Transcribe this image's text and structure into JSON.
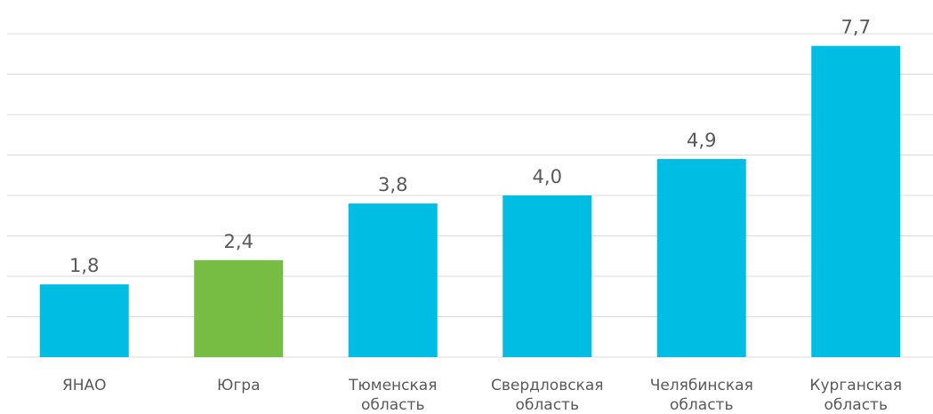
{
  "chart_data": {
    "type": "bar",
    "categories": [
      "ЯНАО",
      "Югра",
      "Тюменская область",
      "Свердловская область",
      "Челябинская область",
      "Курганская область"
    ],
    "values": [
      1.8,
      2.4,
      3.8,
      4.0,
      4.9,
      7.7
    ],
    "value_labels": [
      "1,8",
      "2,4",
      "3,8",
      "4,0",
      "4,9",
      "7,7"
    ],
    "colors": [
      "#00bee3",
      "#77bc43",
      "#00bee3",
      "#00bee3",
      "#00bee3",
      "#00bee3"
    ],
    "ylim": [
      0,
      8
    ],
    "yticks": [
      0,
      1,
      2,
      3,
      4,
      5,
      6,
      7,
      8
    ],
    "grid": true
  }
}
